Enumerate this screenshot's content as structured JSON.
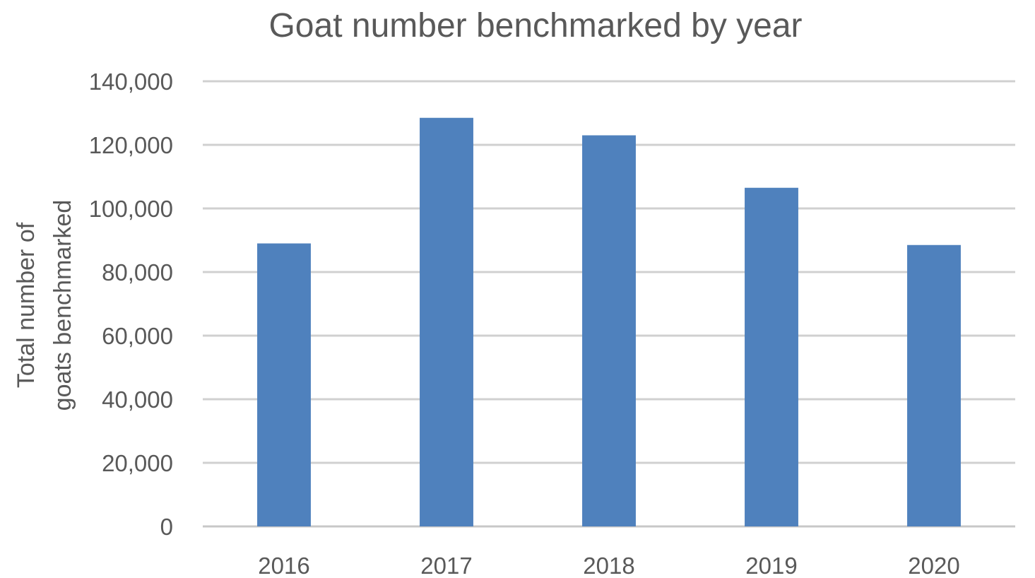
{
  "chart_data": {
    "type": "bar",
    "title": "Goat number benchmarked by year",
    "ylabel_lines": [
      "Total number of",
      "goats benchmarked"
    ],
    "xlabel": "",
    "categories": [
      "2016",
      "2017",
      "2018",
      "2019",
      "2020"
    ],
    "values": [
      89000,
      128500,
      123000,
      106500,
      88500
    ],
    "ylim": [
      0,
      140000
    ],
    "yticks": [
      0,
      20000,
      40000,
      60000,
      80000,
      100000,
      120000,
      140000
    ],
    "ytick_labels": [
      "0",
      "20,000",
      "40,000",
      "60,000",
      "80,000",
      "100,000",
      "120,000",
      "140,000"
    ],
    "grid": true,
    "legend": "none",
    "bar_color": "#4f81bd"
  }
}
